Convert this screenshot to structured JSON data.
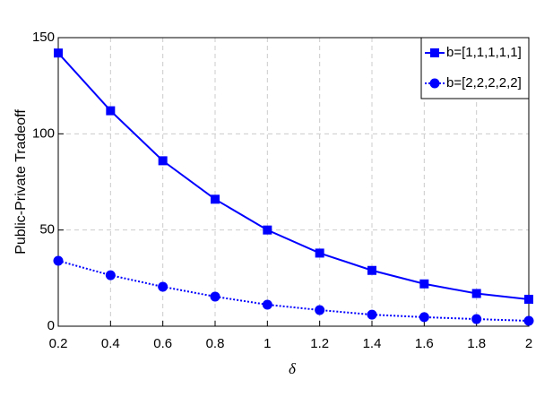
{
  "chart_data": {
    "type": "line",
    "xlabel": "δ",
    "ylabel": "Public-Private Tradeoff",
    "x": [
      0.2,
      0.4,
      0.6,
      0.8,
      1,
      1.2,
      1.4,
      1.6,
      1.8,
      2
    ],
    "series": [
      {
        "name": "b=[1,1,1,1,1]",
        "color": "#0000ff",
        "marker": "square",
        "linestyle": "solid",
        "values": [
          142,
          112,
          86,
          66,
          50,
          38,
          29,
          22,
          17,
          14
        ]
      },
      {
        "name": "b=[2,2,2,2,2]",
        "color": "#0000ff",
        "marker": "circle",
        "linestyle": "dotted",
        "values": [
          34,
          26.5,
          20.5,
          15.4,
          11.2,
          8.4,
          6,
          4.7,
          3.7,
          2.8
        ]
      }
    ],
    "xlim": [
      0.2,
      2
    ],
    "xticks": [
      0.2,
      0.4,
      0.6,
      0.8,
      1,
      1.2,
      1.4,
      1.6,
      1.8,
      2
    ],
    "ylim": [
      0,
      150
    ],
    "yticks": [
      0,
      50,
      100,
      150
    ],
    "grid": true,
    "legend": "top-right"
  }
}
